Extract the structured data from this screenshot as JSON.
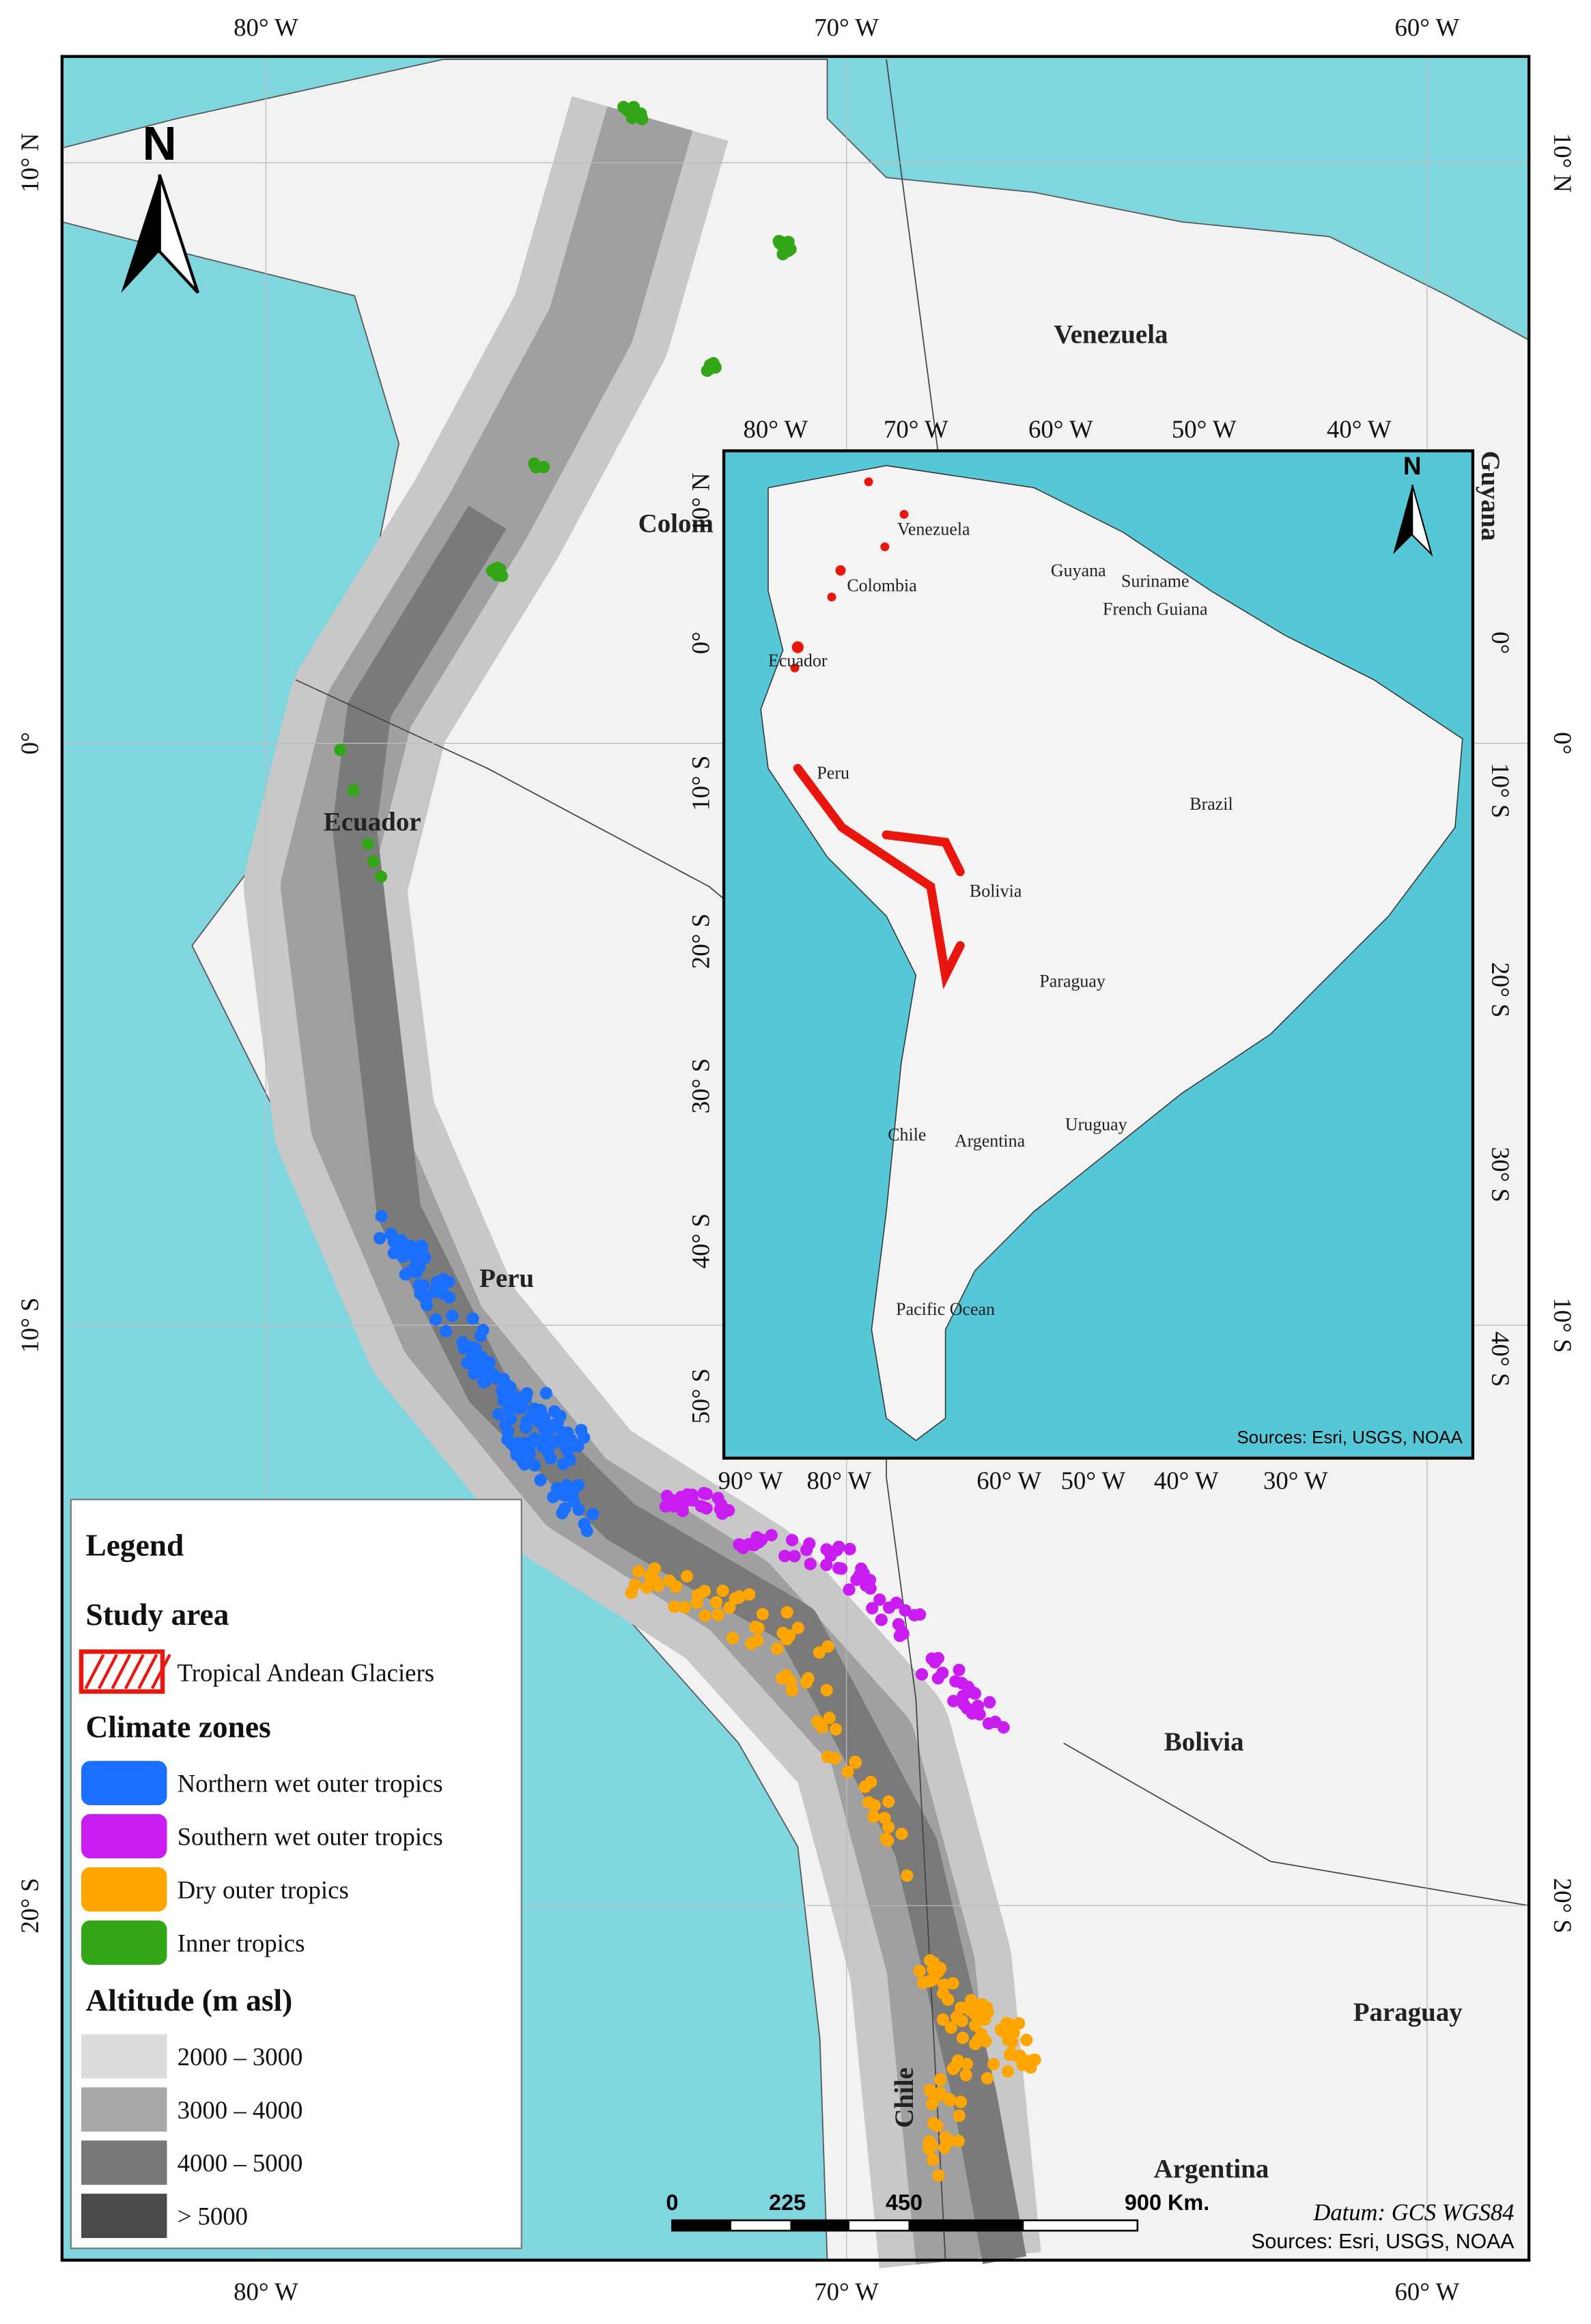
{
  "map": {
    "graticule": {
      "top": [
        "80° W",
        "70° W",
        "60° W"
      ],
      "bottom": [
        "80° W",
        "70° W",
        "60° W"
      ],
      "left": [
        "10° N",
        "0°",
        "10° S",
        "20° S"
      ],
      "right": [
        "10° N",
        "0°",
        "10° S",
        "20° S"
      ]
    },
    "north": "N",
    "labels": [
      "Venezuela",
      "Colom",
      "Ecuador",
      "Peru",
      "Bolivia",
      "Chile",
      "Paraguay",
      "Argentina",
      "Guyana"
    ],
    "scale_bar": [
      "0",
      "225",
      "450",
      "900 Km."
    ],
    "datum": "Datum: GCS WGS84",
    "sources": "Sources: Esri, USGS, NOAA"
  },
  "inset": {
    "graticule": {
      "top": [
        "80° W",
        "70° W",
        "60° W",
        "50° W",
        "40° W"
      ],
      "bottom": [
        "90° W",
        "80° W",
        "60° W",
        "50° W",
        "40° W",
        "30° W"
      ],
      "left": [
        "10° N",
        "0°",
        "10° S",
        "20° S",
        "30° S",
        "40° S",
        "50° S"
      ],
      "right": [
        "0°",
        "10° S",
        "20° S",
        "30° S",
        "40° S"
      ]
    },
    "north": "N",
    "labels": [
      "Venezuela",
      "Colombia",
      "Guyana",
      "Suriname",
      "French Guiana",
      "Ecuador",
      "Brazil",
      "Peru",
      "Bolivia",
      "Paraguay",
      "Chile",
      "Argentina",
      "Uruguay",
      "Pacific Ocean"
    ],
    "sources": "Sources: Esri, USGS, NOAA"
  },
  "legend": {
    "title": "Legend",
    "study_area": {
      "title": "Study area",
      "label": "Tropical Andean Glaciers",
      "color": "#e8160c"
    },
    "climate_zones": {
      "title": "Climate zones",
      "items": [
        {
          "label": "Northern wet outer tropics",
          "color": "#1a6fff"
        },
        {
          "label": "Southern wet outer tropics",
          "color": "#c81cf0"
        },
        {
          "label": "Dry outer tropics",
          "color": "#ffa500"
        },
        {
          "label": "Inner tropics",
          "color": "#33a618"
        }
      ]
    },
    "altitude": {
      "title": "Altitude (m asl)",
      "items": [
        {
          "label": "2000 – 3000",
          "color": "#dcdcdc"
        },
        {
          "label": "3000 – 4000",
          "color": "#a9a9a9"
        },
        {
          "label": "4000 – 5000",
          "color": "#787878"
        },
        {
          "label": "> 5000",
          "color": "#4a4a4a"
        }
      ]
    }
  }
}
